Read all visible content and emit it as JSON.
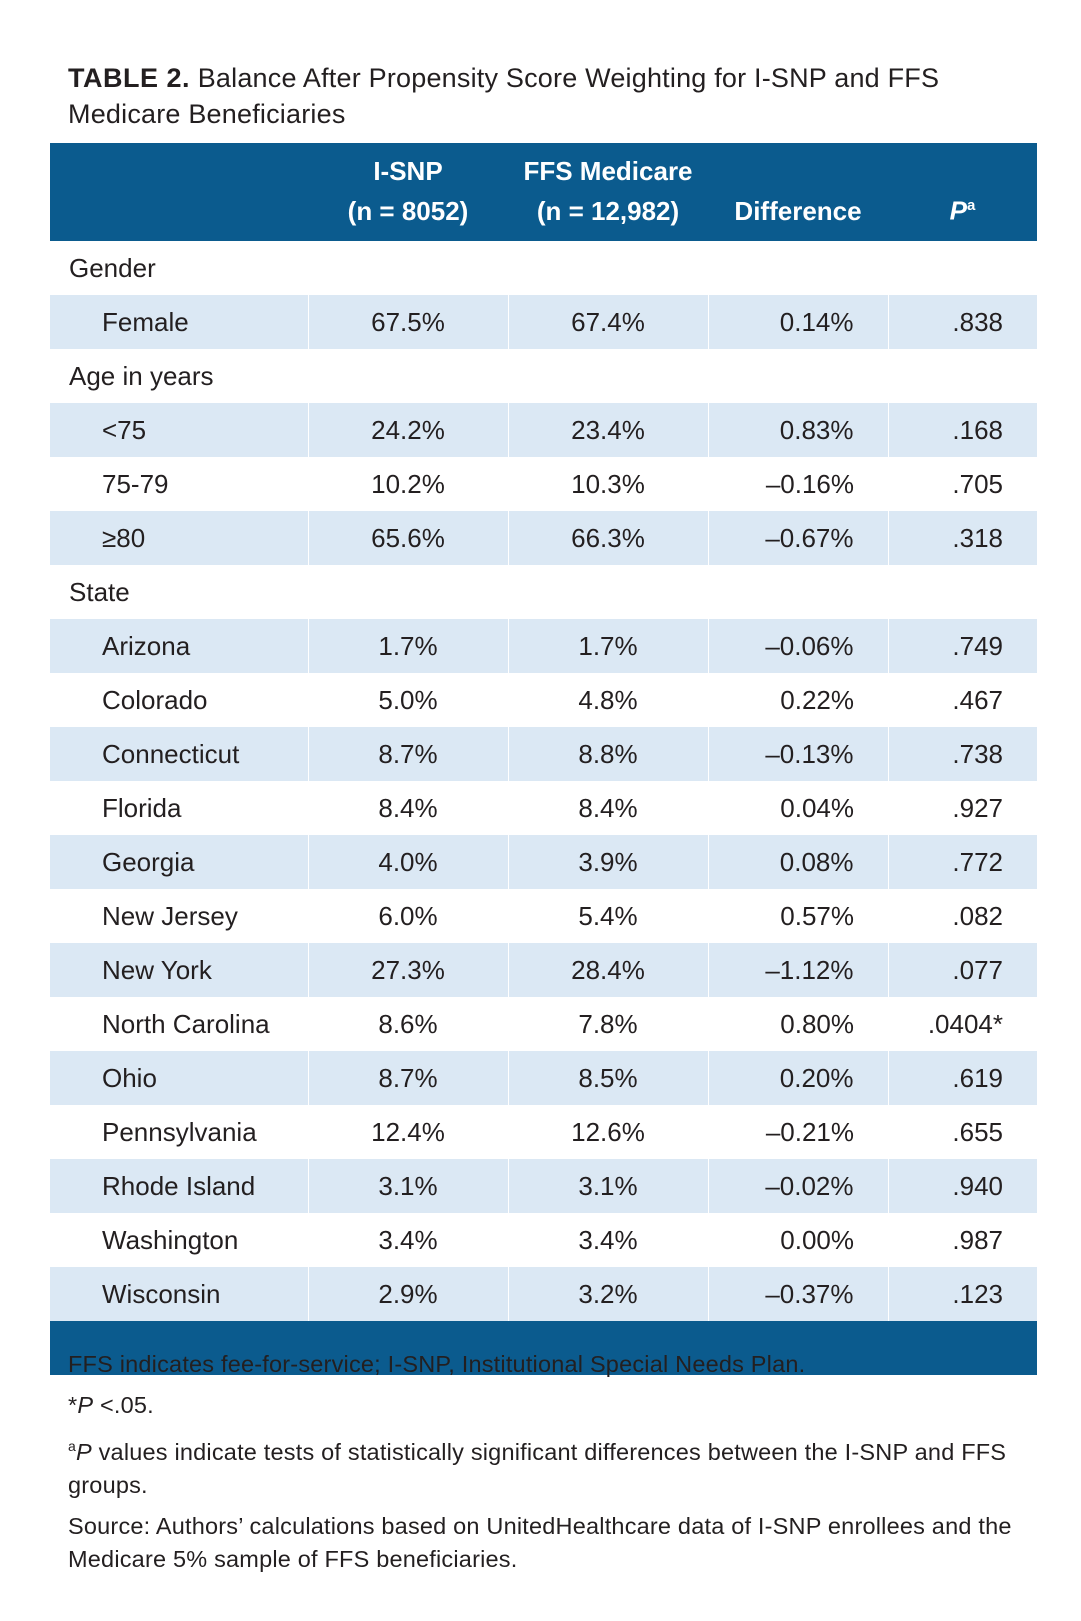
{
  "title": {
    "label": "TABLE 2.",
    "text": "Balance After Propensity Score Weighting for I-SNP and FFS Medicare Beneficiaries"
  },
  "columns": {
    "isnp": {
      "line1": "I-SNP",
      "line2": "(n = 8052)"
    },
    "ffs": {
      "line1": "FFS Medicare",
      "line2": "(n = 12,982)"
    },
    "difference": "Difference",
    "p": {
      "letter": "P",
      "sup": "a"
    }
  },
  "groups": [
    {
      "label": "Gender",
      "rows": [
        {
          "label": "Female",
          "isnp": "67.5%",
          "ffs": "67.4%",
          "difference": "0.14%",
          "p": ".838"
        }
      ]
    },
    {
      "label": "Age in years",
      "rows": [
        {
          "label": "<75",
          "isnp": "24.2%",
          "ffs": "23.4%",
          "difference": "0.83%",
          "p": ".168"
        },
        {
          "label": "75-79",
          "isnp": "10.2%",
          "ffs": "10.3%",
          "difference": "–0.16%",
          "p": ".705"
        },
        {
          "label": "≥80",
          "isnp": "65.6%",
          "ffs": "66.3%",
          "difference": "–0.67%",
          "p": ".318"
        }
      ]
    },
    {
      "label": "State",
      "rows": [
        {
          "label": "Arizona",
          "isnp": "1.7%",
          "ffs": "1.7%",
          "difference": "–0.06%",
          "p": ".749"
        },
        {
          "label": "Colorado",
          "isnp": "5.0%",
          "ffs": "4.8%",
          "difference": "0.22%",
          "p": ".467"
        },
        {
          "label": "Connecticut",
          "isnp": "8.7%",
          "ffs": "8.8%",
          "difference": "–0.13%",
          "p": ".738"
        },
        {
          "label": "Florida",
          "isnp": "8.4%",
          "ffs": "8.4%",
          "difference": "0.04%",
          "p": ".927"
        },
        {
          "label": "Georgia",
          "isnp": "4.0%",
          "ffs": "3.9%",
          "difference": "0.08%",
          "p": ".772"
        },
        {
          "label": "New Jersey",
          "isnp": "6.0%",
          "ffs": "5.4%",
          "difference": "0.57%",
          "p": ".082"
        },
        {
          "label": "New York",
          "isnp": "27.3%",
          "ffs": "28.4%",
          "difference": "–1.12%",
          "p": ".077"
        },
        {
          "label": "North Carolina",
          "isnp": "8.6%",
          "ffs": "7.8%",
          "difference": "0.80%",
          "p": ".0404*"
        },
        {
          "label": "Ohio",
          "isnp": "8.7%",
          "ffs": "8.5%",
          "difference": "0.20%",
          "p": ".619"
        },
        {
          "label": "Pennsylvania",
          "isnp": "12.4%",
          "ffs": "12.6%",
          "difference": "–0.21%",
          "p": ".655"
        },
        {
          "label": "Rhode Island",
          "isnp": "3.1%",
          "ffs": "3.1%",
          "difference": "–0.02%",
          "p": ".940"
        },
        {
          "label": "Washington",
          "isnp": "3.4%",
          "ffs": "3.4%",
          "difference": "0.00%",
          "p": ".987"
        },
        {
          "label": "Wisconsin",
          "isnp": "2.9%",
          "ffs": "3.2%",
          "difference": "–0.37%",
          "p": ".123"
        }
      ]
    }
  ],
  "footnotes": {
    "abbreviations": "FFS indicates fee-for-service; I-SNP, Institutional Special Needs Plan.",
    "significance": {
      "mark": "*",
      "letter": "P",
      "text": " <.05."
    },
    "p_values": {
      "sup": "a",
      "letter": "P",
      "text": " values indicate tests of statistically significant differences between the I-SNP and FFS groups."
    },
    "source": "Source: Authors’ calculations based on UnitedHealthcare data of I-SNP enrollees and the Medicare 5% sample of FFS beneficiaries."
  },
  "colors": {
    "header_bg": "#0b5b8e",
    "row_shade": "#dbe8f4",
    "text": "#231f20"
  }
}
